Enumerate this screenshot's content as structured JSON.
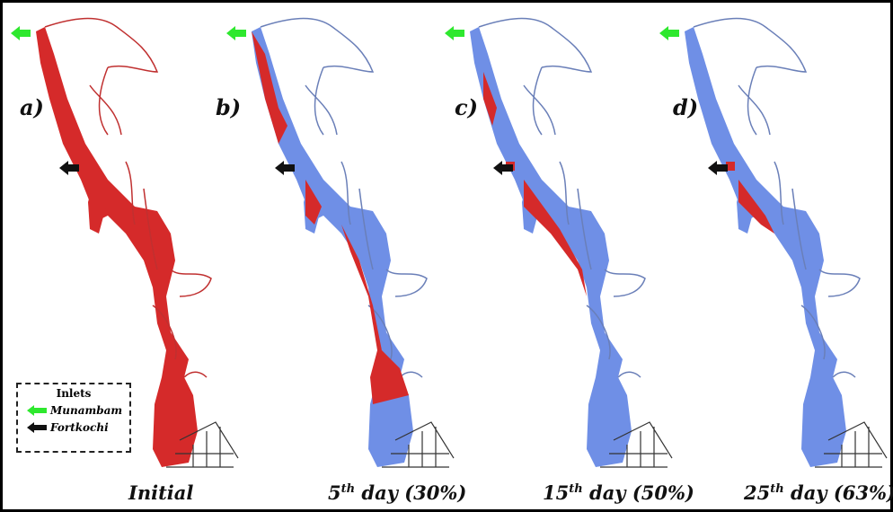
{
  "panels": [
    {
      "label": "a)",
      "caption": [
        "Initial"
      ]
    },
    {
      "label": "b)",
      "caption": [
        "5",
        "th",
        " day (30%)"
      ]
    },
    {
      "label": "c)",
      "caption": [
        "15",
        "th",
        " day (50%)"
      ]
    },
    {
      "label": "d)",
      "caption": [
        "25",
        "th",
        " day (63%)"
      ]
    }
  ],
  "legend": {
    "title": "Inlets",
    "items": [
      "Munambam",
      "Fortkochi"
    ]
  }
}
